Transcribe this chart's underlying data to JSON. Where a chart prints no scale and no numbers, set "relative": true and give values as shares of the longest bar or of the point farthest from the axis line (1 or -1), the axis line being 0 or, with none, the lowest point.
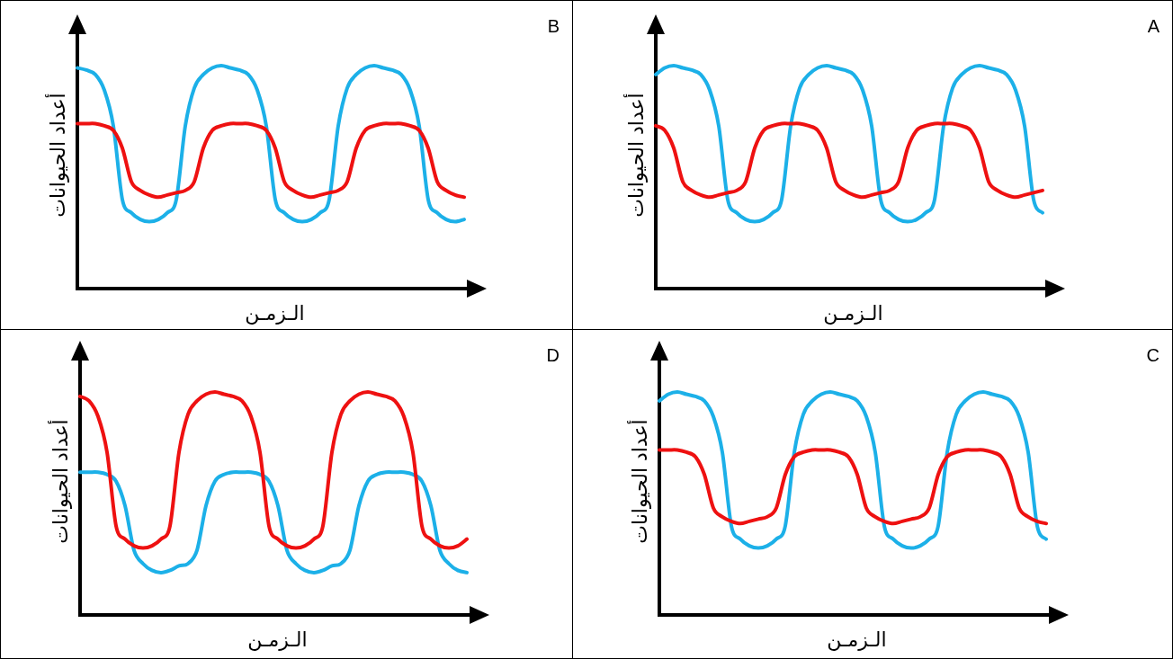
{
  "chart_data": [
    {
      "type": "line",
      "annotations": [
        "B"
      ],
      "xlabel": "الـزمـن",
      "ylabel": "أعداد الحيوانات",
      "relative": true,
      "categories": [
        null,
        null,
        null,
        null,
        null,
        null,
        null,
        null,
        null,
        null,
        null,
        null,
        null,
        null,
        null,
        null,
        null,
        null,
        null,
        null,
        null,
        null,
        null,
        null,
        null,
        null,
        null,
        null,
        null,
        null,
        null,
        null,
        null,
        null,
        null,
        null,
        null,
        null,
        null,
        null,
        null,
        null,
        null,
        null
      ],
      "series": [
        {
          "color": "#1cb0e8",
          "values": [
            0.99,
            0.98,
            0.96,
            0.89,
            0.73,
            0.4,
            0.34,
            0.31,
            0.3,
            0.31,
            0.34,
            0.4,
            0.73,
            0.9,
            0.96,
            0.99,
            1.0,
            0.99,
            0.98,
            0.96,
            0.89,
            0.73,
            0.4,
            0.34,
            0.31,
            0.3,
            0.31,
            0.34,
            0.4,
            0.73,
            0.9,
            0.96,
            0.99,
            1.0,
            0.99,
            0.98,
            0.96,
            0.89,
            0.73,
            0.4,
            0.34,
            0.31,
            0.3,
            0.31
          ]
        },
        {
          "color": "#ee1111",
          "values": [
            0.74,
            0.74,
            0.74,
            0.73,
            0.71,
            0.63,
            0.48,
            0.44,
            0.42,
            0.41,
            0.42,
            0.43,
            0.44,
            0.48,
            0.63,
            0.71,
            0.73,
            0.74,
            0.74,
            0.74,
            0.73,
            0.71,
            0.63,
            0.48,
            0.44,
            0.42,
            0.41,
            0.42,
            0.43,
            0.44,
            0.48,
            0.63,
            0.71,
            0.73,
            0.74,
            0.74,
            0.74,
            0.73,
            0.71,
            0.63,
            0.48,
            0.44,
            0.42,
            0.41
          ]
        }
      ]
    },
    {
      "type": "line",
      "annotations": [
        "A"
      ],
      "xlabel": "الـزمـن",
      "ylabel": "أعداد الحيوانات",
      "relative": true,
      "categories": [
        null,
        null,
        null,
        null,
        null,
        null,
        null,
        null,
        null,
        null,
        null,
        null,
        null,
        null,
        null,
        null,
        null,
        null,
        null,
        null,
        null,
        null,
        null,
        null,
        null,
        null,
        null,
        null,
        null,
        null,
        null,
        null,
        null,
        null,
        null,
        null,
        null,
        null,
        null,
        null,
        null,
        null,
        null,
        null
      ],
      "series": [
        {
          "color": "#1cb0e8",
          "values": [
            0.96,
            0.99,
            1.0,
            0.99,
            0.98,
            0.96,
            0.89,
            0.73,
            0.4,
            0.34,
            0.31,
            0.3,
            0.31,
            0.34,
            0.4,
            0.73,
            0.9,
            0.96,
            0.99,
            1.0,
            0.99,
            0.98,
            0.96,
            0.89,
            0.73,
            0.4,
            0.34,
            0.31,
            0.3,
            0.31,
            0.34,
            0.4,
            0.73,
            0.9,
            0.96,
            0.99,
            1.0,
            0.99,
            0.98,
            0.96,
            0.89,
            0.73,
            0.4,
            0.34
          ]
        },
        {
          "color": "#ee1111",
          "values": [
            0.73,
            0.71,
            0.63,
            0.48,
            0.44,
            0.42,
            0.41,
            0.42,
            0.43,
            0.44,
            0.48,
            0.63,
            0.71,
            0.73,
            0.74,
            0.74,
            0.74,
            0.73,
            0.71,
            0.63,
            0.48,
            0.44,
            0.42,
            0.41,
            0.42,
            0.43,
            0.44,
            0.48,
            0.63,
            0.71,
            0.73,
            0.74,
            0.74,
            0.74,
            0.73,
            0.71,
            0.63,
            0.48,
            0.44,
            0.42,
            0.41,
            0.42,
            0.43,
            0.44
          ]
        }
      ]
    },
    {
      "type": "line",
      "annotations": [
        "D"
      ],
      "xlabel": "الـزمـن",
      "ylabel": "أعداد الحيوانات",
      "relative": true,
      "categories": [
        null,
        null,
        null,
        null,
        null,
        null,
        null,
        null,
        null,
        null,
        null,
        null,
        null,
        null,
        null,
        null,
        null,
        null,
        null,
        null,
        null,
        null,
        null,
        null,
        null,
        null,
        null,
        null,
        null,
        null,
        null,
        null,
        null,
        null,
        null,
        null,
        null,
        null,
        null,
        null,
        null,
        null,
        null,
        null
      ],
      "series": [
        {
          "color": "#1cb0e8",
          "values": [
            0.64,
            0.64,
            0.64,
            0.63,
            0.6,
            0.49,
            0.29,
            0.23,
            0.2,
            0.19,
            0.2,
            0.22,
            0.23,
            0.29,
            0.49,
            0.6,
            0.63,
            0.64,
            0.64,
            0.64,
            0.63,
            0.6,
            0.49,
            0.29,
            0.23,
            0.2,
            0.19,
            0.2,
            0.22,
            0.23,
            0.29,
            0.49,
            0.6,
            0.63,
            0.64,
            0.64,
            0.64,
            0.63,
            0.6,
            0.49,
            0.29,
            0.23,
            0.2,
            0.19
          ]
        },
        {
          "color": "#ee1111",
          "values": [
            0.98,
            0.96,
            0.89,
            0.73,
            0.4,
            0.34,
            0.31,
            0.3,
            0.31,
            0.34,
            0.4,
            0.73,
            0.9,
            0.96,
            0.99,
            1.0,
            0.99,
            0.98,
            0.96,
            0.89,
            0.73,
            0.4,
            0.34,
            0.31,
            0.3,
            0.31,
            0.34,
            0.4,
            0.73,
            0.9,
            0.96,
            0.99,
            1.0,
            0.99,
            0.98,
            0.96,
            0.89,
            0.73,
            0.4,
            0.34,
            0.31,
            0.3,
            0.31,
            0.34
          ]
        }
      ]
    },
    {
      "type": "line",
      "annotations": [
        "C"
      ],
      "xlabel": "الـزمـن",
      "ylabel": "أعداد الحيوانات",
      "relative": true,
      "categories": [
        null,
        null,
        null,
        null,
        null,
        null,
        null,
        null,
        null,
        null,
        null,
        null,
        null,
        null,
        null,
        null,
        null,
        null,
        null,
        null,
        null,
        null,
        null,
        null,
        null,
        null,
        null,
        null,
        null,
        null,
        null,
        null,
        null,
        null,
        null,
        null,
        null,
        null,
        null,
        null,
        null,
        null,
        null,
        null
      ],
      "series": [
        {
          "color": "#1cb0e8",
          "values": [
            0.96,
            0.99,
            1.0,
            0.99,
            0.98,
            0.96,
            0.89,
            0.73,
            0.4,
            0.34,
            0.31,
            0.3,
            0.31,
            0.34,
            0.4,
            0.73,
            0.9,
            0.96,
            0.99,
            1.0,
            0.99,
            0.98,
            0.96,
            0.89,
            0.73,
            0.4,
            0.34,
            0.31,
            0.3,
            0.31,
            0.34,
            0.4,
            0.73,
            0.9,
            0.96,
            0.99,
            1.0,
            0.99,
            0.98,
            0.96,
            0.89,
            0.73,
            0.4,
            0.34
          ]
        },
        {
          "color": "#ee1111",
          "values": [
            0.74,
            0.74,
            0.74,
            0.73,
            0.71,
            0.63,
            0.48,
            0.44,
            0.42,
            0.41,
            0.42,
            0.43,
            0.44,
            0.48,
            0.63,
            0.71,
            0.73,
            0.74,
            0.74,
            0.74,
            0.73,
            0.71,
            0.63,
            0.48,
            0.44,
            0.42,
            0.41,
            0.42,
            0.43,
            0.44,
            0.48,
            0.63,
            0.71,
            0.73,
            0.74,
            0.74,
            0.74,
            0.73,
            0.71,
            0.63,
            0.48,
            0.44,
            0.42,
            0.41
          ]
        }
      ]
    }
  ]
}
